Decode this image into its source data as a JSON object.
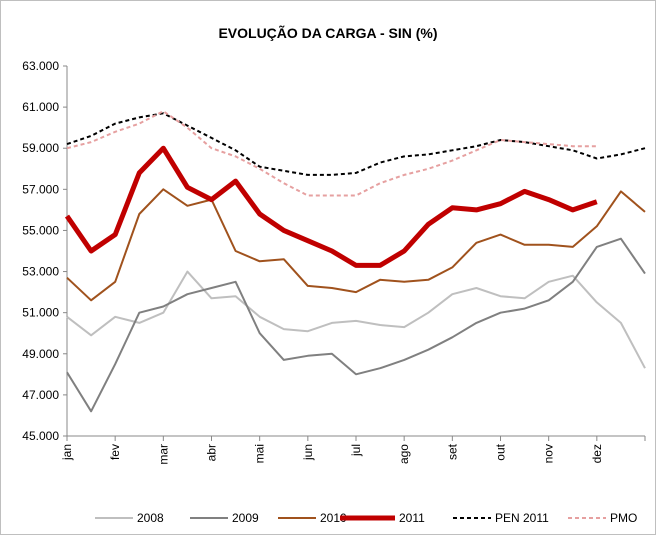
{
  "chart_data": {
    "type": "line",
    "title": "EVOLUÇÃO DA CARGA - SIN (%)",
    "categories": [
      "jan",
      null,
      "fev",
      null,
      "mar",
      null,
      "abr",
      null,
      "mai",
      null,
      "jun",
      null,
      "jul",
      null,
      "ago",
      null,
      "set",
      null,
      "out",
      null,
      "nov",
      null,
      "dez",
      null,
      null
    ],
    "ylim": [
      45000,
      63000
    ],
    "yticks": [
      {
        "value": 45000,
        "label": "45.000"
      },
      {
        "value": 47000,
        "label": "47.000"
      },
      {
        "value": 49000,
        "label": "49.000"
      },
      {
        "value": 51000,
        "label": "51.000"
      },
      {
        "value": 53000,
        "label": "53.000"
      },
      {
        "value": 55000,
        "label": "55.000"
      },
      {
        "value": 57000,
        "label": "57.000"
      },
      {
        "value": 59000,
        "label": "59.000"
      },
      {
        "value": 61000,
        "label": "61.000"
      },
      {
        "value": 63000,
        "label": "63.000"
      }
    ],
    "grid": false,
    "legend": "bottom",
    "series": [
      {
        "name": "2008",
        "color": "#bfbfbf",
        "width": 2,
        "dash": "solid",
        "values": [
          50800,
          49900,
          50800,
          50500,
          51000,
          53000,
          51700,
          51800,
          50800,
          50200,
          50100,
          50500,
          50600,
          50400,
          50300,
          51000,
          51900,
          52200,
          51800,
          51700,
          52500,
          52800,
          51500,
          50500,
          48300
        ]
      },
      {
        "name": "2009",
        "color": "#808080",
        "width": 2,
        "dash": "solid",
        "values": [
          48100,
          46200,
          48500,
          51000,
          51300,
          51900,
          52200,
          52500,
          50000,
          48700,
          48900,
          49000,
          48000,
          48300,
          48700,
          49200,
          49800,
          50500,
          51000,
          51200,
          51600,
          52500,
          54200,
          54600,
          52900
        ]
      },
      {
        "name": "2010",
        "color": "#a0521d",
        "width": 2,
        "dash": "solid",
        "values": [
          52700,
          51600,
          52500,
          55800,
          57000,
          56200,
          56500,
          54000,
          53500,
          53600,
          52300,
          52200,
          52000,
          52600,
          52500,
          52600,
          53200,
          54400,
          54800,
          54300,
          54300,
          54200,
          55200,
          56900,
          55900
        ]
      },
      {
        "name": "2011",
        "color": "#c00000",
        "width": 5,
        "dash": "solid",
        "values": [
          55700,
          54000,
          54800,
          57800,
          59000,
          57100,
          56500,
          57400,
          55800,
          55000,
          54500,
          54000,
          53300,
          53300,
          54000,
          55300,
          56100,
          56000,
          56300,
          56900,
          56500,
          56000,
          56400,
          null,
          null
        ]
      },
      {
        "name": "PEN 2011",
        "color": "#000000",
        "width": 2,
        "dash": "dashed",
        "values": [
          59200,
          59600,
          60200,
          60500,
          60700,
          60100,
          59500,
          58900,
          58100,
          57900,
          57700,
          57700,
          57800,
          58300,
          58600,
          58700,
          58900,
          59100,
          59400,
          59300,
          59100,
          58900,
          58500,
          58700,
          59000
        ]
      },
      {
        "name": "PMO",
        "color": "#e6a0a0",
        "width": 2,
        "dash": "dashed",
        "values": [
          59000,
          59300,
          59800,
          60200,
          60800,
          60000,
          59000,
          58600,
          58000,
          57300,
          56700,
          56700,
          56700,
          57300,
          57700,
          58000,
          58400,
          58900,
          59400,
          59300,
          59200,
          59100,
          59100,
          null,
          null
        ]
      }
    ]
  }
}
